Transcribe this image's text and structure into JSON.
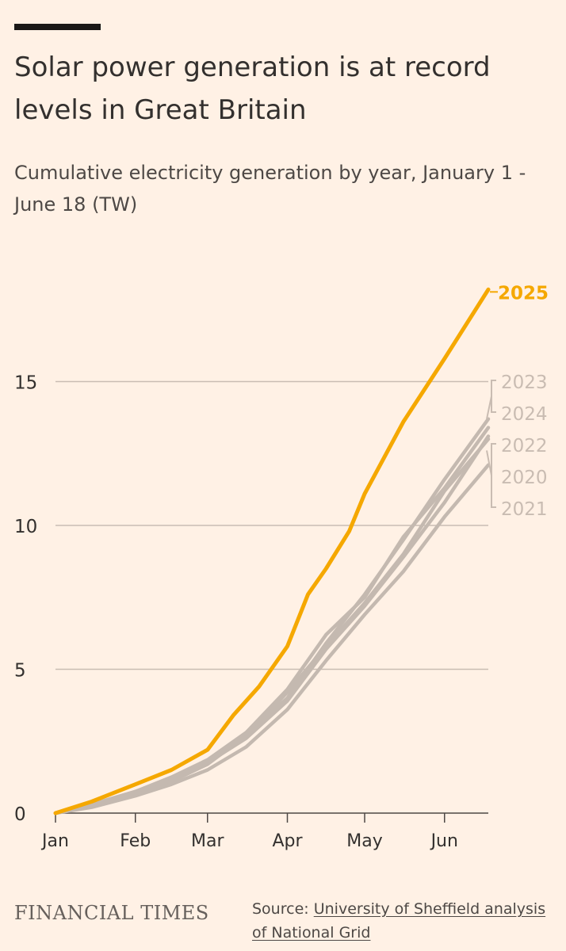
{
  "header": {
    "title": "Solar power generation is at record levels in Great Britain",
    "subtitle": "Cumulative electricity generation by year, January 1 - June 18 (TW)"
  },
  "footer": {
    "brand": "FINANCIAL TIMES",
    "source_label": "Source:",
    "source_text": "University of Sheffield analysis of National Grid"
  },
  "colors": {
    "background": "#fff1e5",
    "highlight": "#f5a800",
    "muted_line": "#c4b9b0",
    "muted_label": "#c9bcb2",
    "grid": "#c9bdb3",
    "axis": "#4d4845",
    "text": "#33302e"
  },
  "chart_data": {
    "type": "line",
    "title": "Solar power generation is at record levels in Great Britain",
    "subtitle": "Cumulative electricity generation by year, January 1 - June 18 (TW)",
    "xlabel": "",
    "ylabel": "",
    "x_unit": "day of year",
    "xlim": [
      1,
      169
    ],
    "ylim": [
      0,
      20
    ],
    "y_ticks": [
      0,
      5,
      10,
      15
    ],
    "y_tick_labels": [
      "0",
      "5",
      "10",
      "15"
    ],
    "x_ticks": [
      1,
      32,
      60,
      91,
      121,
      152
    ],
    "x_tick_labels": [
      "Jan",
      "Feb",
      "Mar",
      "Apr",
      "May",
      "Jun"
    ],
    "grid": true,
    "series": [
      {
        "name": "2020",
        "highlight": false,
        "x": [
          1,
          15,
          32,
          46,
          60,
          75,
          91,
          106,
          121,
          136,
          152,
          169
        ],
        "y": [
          0,
          0.25,
          0.65,
          1.1,
          1.7,
          2.7,
          4.2,
          5.8,
          7.3,
          9.0,
          11.2,
          13.0
        ]
      },
      {
        "name": "2021",
        "highlight": false,
        "x": [
          1,
          15,
          32,
          46,
          60,
          75,
          91,
          106,
          121,
          136,
          152,
          169
        ],
        "y": [
          0,
          0.2,
          0.6,
          1.0,
          1.5,
          2.3,
          3.6,
          5.3,
          6.9,
          8.4,
          10.3,
          12.1
        ]
      },
      {
        "name": "2022",
        "highlight": false,
        "x": [
          1,
          15,
          32,
          46,
          60,
          75,
          91,
          106,
          121,
          136,
          152,
          169
        ],
        "y": [
          0,
          0.25,
          0.7,
          1.15,
          1.75,
          2.6,
          3.9,
          5.7,
          7.2,
          8.9,
          10.8,
          13.1
        ]
      },
      {
        "name": "2023",
        "highlight": false,
        "x": [
          1,
          15,
          32,
          46,
          60,
          75,
          91,
          106,
          121,
          136,
          152,
          169
        ],
        "y": [
          0,
          0.3,
          0.75,
          1.2,
          1.8,
          2.7,
          4.0,
          5.9,
          7.6,
          9.5,
          11.6,
          13.7
        ]
      },
      {
        "name": "2024",
        "highlight": false,
        "x": [
          1,
          15,
          32,
          46,
          60,
          75,
          91,
          106,
          121,
          136,
          152,
          169
        ],
        "y": [
          0,
          0.3,
          0.75,
          1.25,
          1.85,
          2.8,
          4.3,
          6.2,
          7.5,
          9.6,
          11.3,
          13.4
        ]
      },
      {
        "name": "2025",
        "highlight": true,
        "x": [
          1,
          15,
          32,
          46,
          60,
          70,
          80,
          91,
          99,
          106,
          115,
          121,
          136,
          152,
          169
        ],
        "y": [
          0,
          0.4,
          1.0,
          1.5,
          2.2,
          3.4,
          4.4,
          5.8,
          7.6,
          8.5,
          9.8,
          11.1,
          13.6,
          15.8,
          18.2
        ]
      }
    ],
    "end_labels": [
      "2025",
      "2023",
      "2024",
      "2022",
      "2020",
      "2021"
    ]
  }
}
